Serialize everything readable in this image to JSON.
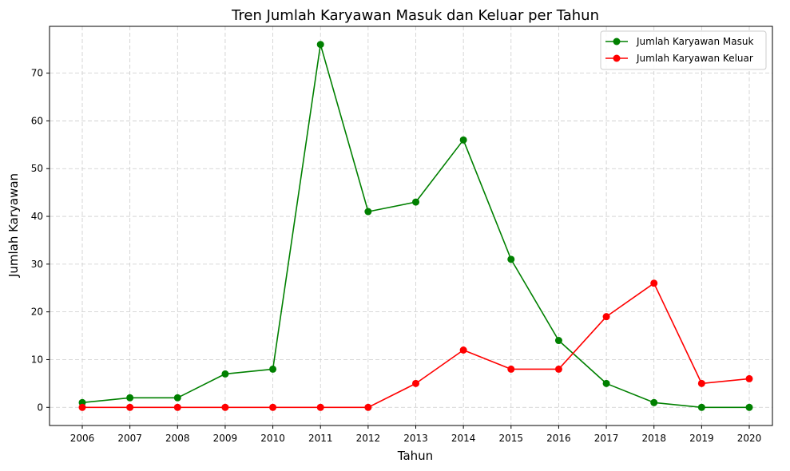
{
  "chart_data": {
    "type": "line",
    "title": "Tren Jumlah Karyawan Masuk dan Keluar per Tahun",
    "xlabel": "Tahun",
    "ylabel": "Jumlah Karyawan",
    "categories": [
      "2006",
      "2007",
      "2008",
      "2009",
      "2010",
      "2011",
      "2012",
      "2013",
      "2014",
      "2015",
      "2016",
      "2017",
      "2018",
      "2019",
      "2020"
    ],
    "yticks": [
      0,
      10,
      20,
      30,
      40,
      50,
      60,
      70
    ],
    "ylim": [
      -3.8,
      79.8
    ],
    "grid": true,
    "legend_position": "top-right",
    "series": [
      {
        "name": "Jumlah Karyawan Masuk",
        "color": "#008000",
        "values": [
          1,
          2,
          2,
          7,
          8,
          76,
          41,
          43,
          56,
          31,
          14,
          5,
          1,
          0,
          0
        ]
      },
      {
        "name": "Jumlah Karyawan Keluar",
        "color": "#ff0000",
        "values": [
          0,
          0,
          0,
          0,
          0,
          0,
          0,
          5,
          12,
          8,
          8,
          19,
          26,
          5,
          6
        ]
      }
    ]
  }
}
